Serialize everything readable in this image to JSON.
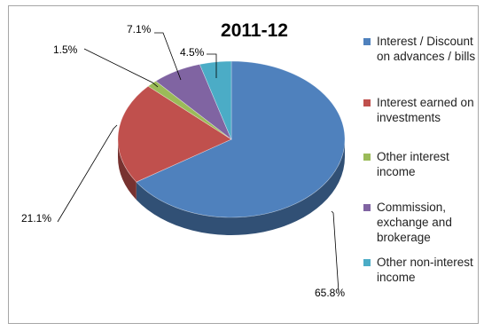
{
  "chart_data": {
    "type": "pie",
    "title": "2011-12",
    "series": [
      {
        "name": "Interest / Discount on advances / bills",
        "value": 65.8,
        "label": "65.8%",
        "color": "#4f81bd"
      },
      {
        "name": "Interest earned on investments",
        "value": 21.1,
        "label": "21.1%",
        "color": "#c0504d"
      },
      {
        "name": "Other interest income",
        "value": 1.5,
        "label": "1.5%",
        "color": "#9bbb59"
      },
      {
        "name": "Commission, exchange and brokerage",
        "value": 7.1,
        "label": "7.1%",
        "color": "#8064a2"
      },
      {
        "name": "Other non-interest income",
        "value": 4.5,
        "label": "4.5%",
        "color": "#4bacc6"
      }
    ],
    "legend_position": "right",
    "style": "3d"
  }
}
